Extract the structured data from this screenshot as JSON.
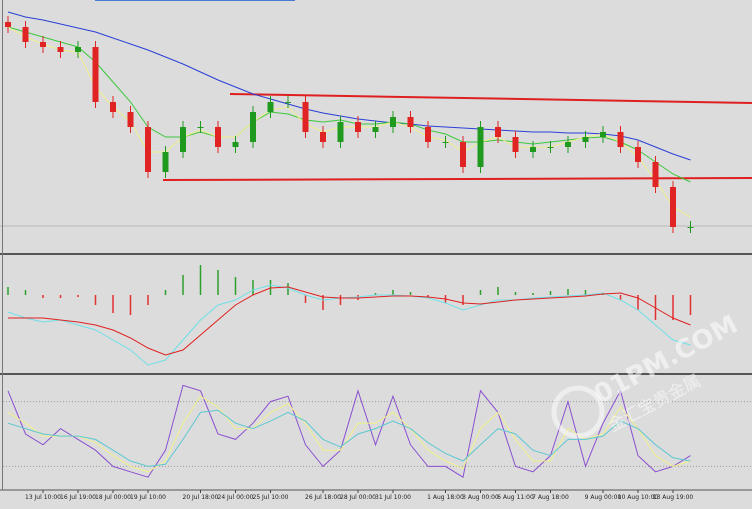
{
  "chart_data": {
    "type": "candlestick",
    "categories": [
      null,
      null,
      "13 Jul 10:00",
      null,
      "16 Jul 19:00",
      null,
      "18 Jul 00:00",
      null,
      "19 Jul 10:00",
      null,
      null,
      "20 Jul 18:00",
      null,
      "24 Jul 00:00",
      null,
      "25 Jul 10:00",
      null,
      null,
      "26 Jul 18:00",
      null,
      "28 Jul 00:00",
      null,
      "31 Jul 10:00",
      null,
      null,
      "1 Aug 18:00",
      null,
      "3 Aug 00:00",
      null,
      "6 Aug 11:00",
      null,
      "7 Aug 18:00",
      null,
      null,
      "9 Aug 00:00",
      null,
      "10 Aug 10:00",
      null,
      "13 Aug 19:00",
      null
    ],
    "open": [
      230,
      225,
      210,
      205,
      200,
      205,
      150,
      140,
      125,
      80,
      100,
      125,
      125,
      105,
      110,
      140,
      150,
      150,
      120,
      110,
      130,
      120,
      125,
      135,
      125,
      110,
      110,
      85,
      125,
      115,
      100,
      105,
      105,
      110,
      115,
      120,
      105,
      90,
      65,
      25
    ],
    "high": [
      236,
      231,
      216,
      211,
      211,
      211,
      156,
      146,
      131,
      106,
      131,
      131,
      131,
      116,
      146,
      156,
      156,
      156,
      126,
      136,
      136,
      131,
      141,
      141,
      131,
      116,
      116,
      131,
      131,
      121,
      111,
      111,
      116,
      121,
      126,
      126,
      111,
      96,
      71,
      31
    ],
    "low": [
      219,
      204,
      199,
      194,
      194,
      144,
      134,
      119,
      74,
      74,
      94,
      119,
      99,
      99,
      104,
      134,
      144,
      114,
      104,
      104,
      114,
      114,
      119,
      119,
      104,
      104,
      79,
      79,
      109,
      94,
      94,
      99,
      99,
      104,
      109,
      99,
      84,
      59,
      19,
      19
    ],
    "close": [
      225,
      210,
      205,
      200,
      205,
      150,
      140,
      125,
      80,
      100,
      125,
      125,
      105,
      110,
      140,
      150,
      150,
      120,
      110,
      130,
      120,
      125,
      135,
      125,
      110,
      110,
      85,
      125,
      115,
      100,
      105,
      105,
      110,
      115,
      120,
      105,
      90,
      65,
      25,
      25
    ],
    "ylim": [
      0,
      250
    ],
    "up_color": "#1f9a1f",
    "down_color": "#e02424",
    "moving_averages": [
      {
        "color": "#2a3fd6",
        "values": [
          240,
          235,
          232,
          228,
          224,
          220,
          214,
          208,
          202,
          195,
          188,
          180,
          172,
          165,
          158,
          153,
          148,
          143,
          139,
          136,
          133,
          131,
          129,
          128,
          126,
          125,
          124,
          123,
          122,
          121,
          120,
          120,
          119,
          119,
          118,
          116,
          112,
          105,
          98,
          92
        ]
      },
      {
        "color": "#3cc83c",
        "values": [
          225,
          220,
          215,
          210,
          205,
          190,
          170,
          150,
          125,
          115,
          115,
          120,
          115,
          115,
          130,
          140,
          138,
          132,
          130,
          132,
          128,
          128,
          130,
          128,
          122,
          118,
          110,
          110,
          112,
          110,
          108,
          110,
          112,
          114,
          115,
          110,
          102,
          90,
          78,
          70
        ]
      },
      {
        "color": "#f0f08a",
        "values": [
          225,
          215,
          208,
          202,
          200,
          165,
          145,
          130,
          100,
          100,
          115,
          122,
          115,
          115,
          130,
          142,
          145,
          128,
          120,
          125,
          125,
          125,
          130,
          125,
          115,
          112,
          100,
          110,
          115,
          105,
          105,
          105,
          110,
          115,
          118,
          110,
          95,
          72,
          45,
          35
        ]
      }
    ],
    "macd": {
      "ylim": [
        -75,
        37
      ],
      "histogram": [
        8,
        5,
        -3,
        -3,
        -2,
        -10,
        -18,
        -20,
        -10,
        5,
        20,
        30,
        25,
        18,
        15,
        15,
        12,
        -8,
        -15,
        -10,
        -5,
        2,
        5,
        3,
        -3,
        -8,
        -10,
        5,
        8,
        3,
        2,
        4,
        6,
        5,
        2,
        -5,
        -15,
        -25,
        -25,
        -20
      ],
      "up_color": "#2ca02c",
      "down_color": "#e03030",
      "lines": [
        {
          "color": "#6fe0e8",
          "values": [
            -17,
            -23,
            -27,
            -25,
            -30,
            -35,
            -45,
            -55,
            -70,
            -65,
            -45,
            -25,
            -10,
            -5,
            5,
            10,
            7,
            0,
            -5,
            -3,
            -2,
            0,
            0,
            -1,
            -3,
            -8,
            -15,
            -10,
            -5,
            -5,
            -3,
            -2,
            -1,
            0,
            2,
            -5,
            -15,
            -30,
            -45,
            -50
          ]
        },
        {
          "color": "#e02020",
          "values": [
            -23,
            -23,
            -23,
            -25,
            -27,
            -30,
            -35,
            -43,
            -53,
            -60,
            -55,
            -40,
            -25,
            -10,
            0,
            7,
            8,
            3,
            -2,
            -3,
            -3,
            -2,
            -1,
            -1,
            -2,
            -4,
            -8,
            -9,
            -7,
            -5,
            -4,
            -3,
            -2,
            -1,
            1,
            2,
            -3,
            -13,
            -23,
            -30
          ]
        }
      ]
    },
    "stochastic": {
      "ylim": [
        0,
        100
      ],
      "levels": [
        20,
        80
      ],
      "lines": [
        {
          "color": "#8a4fd0",
          "values": [
            90,
            50,
            40,
            55,
            45,
            35,
            20,
            15,
            10,
            35,
            95,
            90,
            50,
            45,
            60,
            80,
            85,
            40,
            20,
            35,
            90,
            40,
            85,
            40,
            20,
            20,
            10,
            90,
            70,
            20,
            15,
            30,
            80,
            20,
            60,
            90,
            30,
            15,
            20,
            30
          ]
        },
        {
          "color": "#f0f08a",
          "values": [
            70,
            60,
            48,
            48,
            48,
            42,
            30,
            20,
            15,
            25,
            60,
            85,
            75,
            55,
            55,
            70,
            78,
            60,
            35,
            35,
            60,
            60,
            70,
            55,
            35,
            25,
            18,
            55,
            70,
            45,
            25,
            25,
            55,
            45,
            50,
            75,
            55,
            30,
            20,
            25
          ]
        },
        {
          "color": "#5cc8d0",
          "values": [
            60,
            55,
            50,
            48,
            48,
            45,
            35,
            25,
            20,
            22,
            45,
            70,
            72,
            60,
            55,
            62,
            70,
            62,
            45,
            38,
            50,
            55,
            62,
            55,
            42,
            32,
            25,
            40,
            55,
            50,
            35,
            30,
            45,
            45,
            48,
            62,
            55,
            40,
            28,
            25
          ]
        }
      ]
    }
  },
  "watermark": {
    "text": "01PM.COM",
    "subtext": "金汇宝贵金属"
  }
}
